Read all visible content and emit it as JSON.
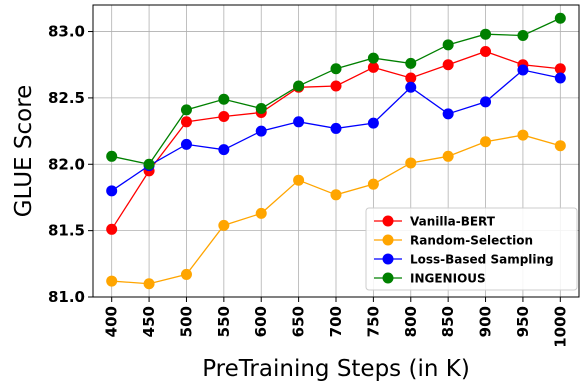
{
  "chart_data": {
    "type": "line",
    "xlabel": "PreTraining Steps (in K)",
    "ylabel": "GLUE Score",
    "x": [
      400,
      450,
      500,
      550,
      600,
      650,
      700,
      750,
      800,
      850,
      900,
      950,
      1000
    ],
    "xticks": [
      "400",
      "450",
      "500",
      "550",
      "600",
      "650",
      "700",
      "750",
      "800",
      "850",
      "900",
      "950",
      "1000"
    ],
    "yticks": [
      "81.0",
      "81.5",
      "82.0",
      "82.5",
      "83.0"
    ],
    "ylim": [
      81.0,
      83.2
    ],
    "grid": true,
    "legend_position": "lower-right",
    "series": [
      {
        "name": "Vanilla-BERT",
        "color": "#ff0000",
        "values": [
          81.51,
          81.95,
          82.32,
          82.36,
          82.39,
          82.58,
          82.59,
          82.73,
          82.65,
          82.75,
          82.85,
          82.75,
          82.72
        ]
      },
      {
        "name": "Random-Selection",
        "color": "#ffa500",
        "values": [
          81.12,
          81.1,
          81.17,
          81.54,
          81.63,
          81.88,
          81.77,
          81.85,
          82.01,
          82.06,
          82.17,
          82.22,
          82.14
        ]
      },
      {
        "name": "Loss-Based Sampling",
        "color": "#0000ff",
        "values": [
          81.8,
          81.99,
          82.15,
          82.11,
          82.25,
          82.32,
          82.27,
          82.31,
          82.58,
          82.38,
          82.47,
          82.71,
          82.65
        ]
      },
      {
        "name": "INGENIOUS",
        "color": "#008000",
        "values": [
          82.06,
          82.0,
          82.41,
          82.49,
          82.42,
          82.59,
          82.72,
          82.8,
          82.76,
          82.9,
          82.98,
          82.97,
          83.1
        ]
      }
    ]
  }
}
